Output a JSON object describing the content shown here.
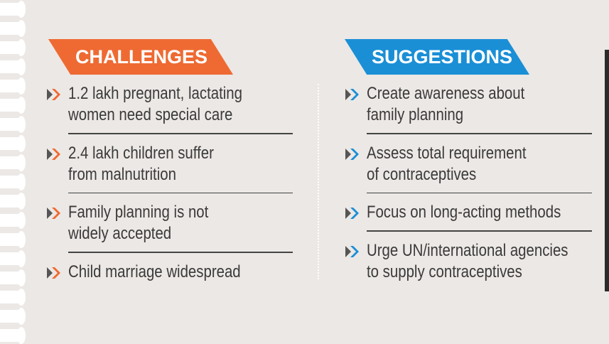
{
  "colors": {
    "challenges": "#ee6a32",
    "suggestions": "#1a8fd6",
    "background": "#ece8e5"
  },
  "challenges": {
    "title": "CHALLENGES",
    "items": [
      {
        "lines": [
          "1.2 lakh pregnant, lactating",
          "women need special care"
        ]
      },
      {
        "lines": [
          "2.4 lakh children suffer",
          "from malnutrition"
        ]
      },
      {
        "lines": [
          "Family planning is not",
          "widely accepted"
        ]
      },
      {
        "lines": [
          "Child marriage widespread"
        ]
      }
    ]
  },
  "suggestions": {
    "title": "SUGGESTIONS",
    "items": [
      {
        "lines": [
          "Create awareness about",
          "family planning"
        ]
      },
      {
        "lines": [
          "Assess total requirement",
          "of contraceptives"
        ]
      },
      {
        "lines": [
          "Focus on long-acting methods"
        ]
      },
      {
        "lines": [
          "Urge UN/international agencies",
          "to supply contraceptives"
        ]
      }
    ]
  },
  "icons": {
    "bullet": "double-chevron-right-icon"
  }
}
